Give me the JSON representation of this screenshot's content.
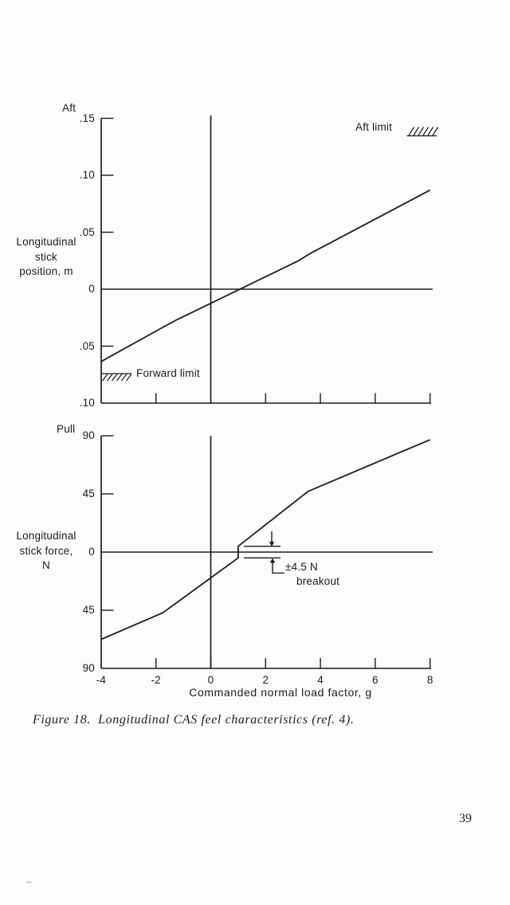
{
  "page": {
    "number": "39",
    "caption": "Figure 18.  Longitudinal CAS feel characteristics (ref. 4)."
  },
  "chart_data": [
    {
      "type": "line",
      "title": "Longitudinal stick position vs commanded normal load factor",
      "direction_label": "Aft",
      "ylabel": "Longitudinal stick position, m",
      "ylabel_lines": [
        "Longitudinal",
        "stick",
        "position, m"
      ],
      "xlabel": "",
      "xlim": [
        -4,
        8
      ],
      "ylim": [
        -0.1,
        0.15
      ],
      "y_tick_values": [
        0.15,
        0.1,
        0.05,
        0,
        -0.05,
        -0.1
      ],
      "y_tick_labels": [
        ".15",
        ".10",
        ".05",
        "0",
        ".05",
        ".10"
      ],
      "x_tick_values": [
        -2,
        2,
        4,
        6,
        8
      ],
      "grid": false,
      "aft_limit_label": "Aft limit",
      "forward_limit_label": "Forward limit",
      "series": [
        {
          "name": "Longitudinal stick position, m",
          "points": [
            [
              -4,
              -0.0635
            ],
            [
              -1.75,
              -0.0335
            ],
            [
              -1.25,
              -0.027
            ],
            [
              3.2,
              0.025
            ],
            [
              3.6,
              0.031
            ],
            [
              8,
              0.087
            ]
          ]
        }
      ]
    },
    {
      "type": "line",
      "title": "Longitudinal stick force vs commanded normal load factor",
      "direction_label": "Pull",
      "ylabel": "Longitudinal stick force, N",
      "ylabel_lines": [
        "Longitudinal",
        "stick force,",
        "N"
      ],
      "xlabel": "Commanded normal load factor, g",
      "xlim": [
        -4,
        8
      ],
      "ylim": [
        -90,
        90
      ],
      "y_tick_values": [
        90,
        45,
        0,
        -45,
        -90
      ],
      "y_tick_labels": [
        "90",
        "45",
        "0",
        "45",
        "90"
      ],
      "x_tick_values": [
        -4,
        -2,
        0,
        2,
        4,
        6,
        8
      ],
      "grid": false,
      "breakout_label_line1": "±4.5 N",
      "breakout_label_line2": "breakout",
      "breakout_value_N": 4.5,
      "series": [
        {
          "name": "Longitudinal stick force, N",
          "points": [
            [
              -4,
              -67.5
            ],
            [
              -1.75,
              -47
            ],
            [
              1,
              -4.5
            ],
            [
              1,
              4.5
            ],
            [
              3.55,
              47
            ],
            [
              8,
              87
            ]
          ]
        }
      ]
    }
  ]
}
